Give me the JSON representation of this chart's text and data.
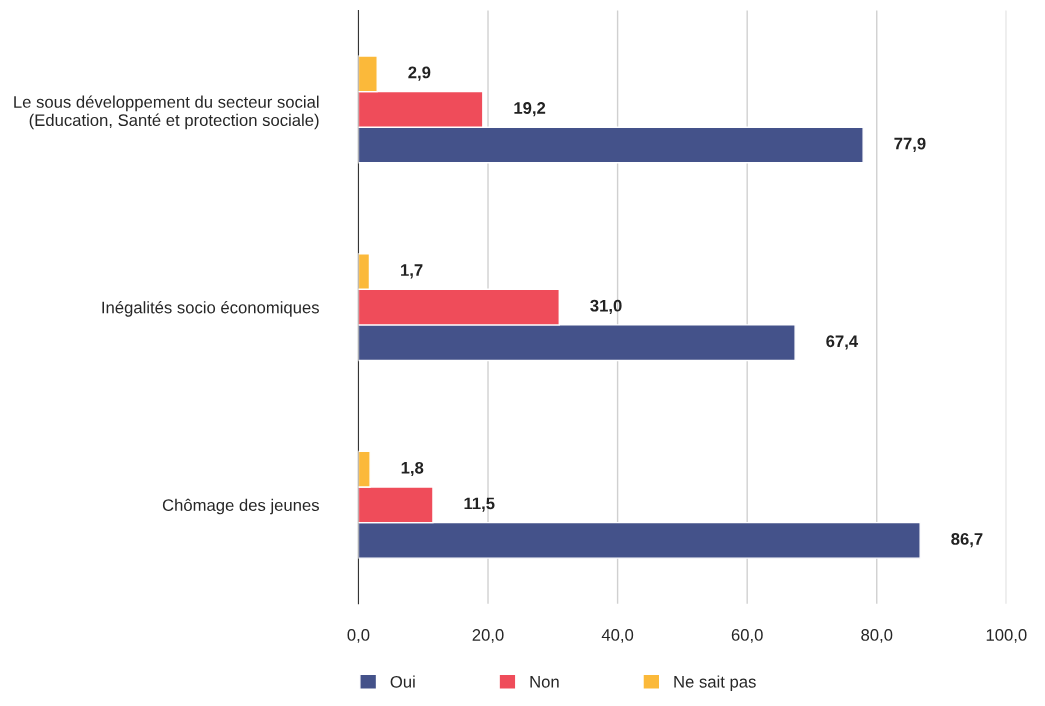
{
  "chart_data": {
    "type": "bar",
    "orientation": "horizontal",
    "categories": [
      "Le sous développement du secteur social\n(Education, Santé et protection sociale)",
      "Inégalités socio économiques",
      "Chômage des jeunes"
    ],
    "series": [
      {
        "name": "Oui",
        "color": "#44528a",
        "values": [
          77.9,
          67.4,
          86.7
        ],
        "value_labels": [
          "77,9",
          "67,4",
          "86,7"
        ]
      },
      {
        "name": "Non",
        "color": "#ef4c5a",
        "values": [
          19.2,
          31.0,
          11.5
        ],
        "value_labels": [
          "19,2",
          "31,0",
          "11,5"
        ]
      },
      {
        "name": "Ne sait pas",
        "color": "#fbb93a",
        "values": [
          2.9,
          1.7,
          1.8
        ],
        "value_labels": [
          "2,9",
          "1,7",
          "1,8"
        ]
      }
    ],
    "xlim": [
      0,
      100
    ],
    "xticks": [
      {
        "value": 0,
        "label": "0,0"
      },
      {
        "value": 20,
        "label": "20,0"
      },
      {
        "value": 40,
        "label": "40,0"
      },
      {
        "value": 60,
        "label": "60,0"
      },
      {
        "value": 80,
        "label": "80,0"
      },
      {
        "value": 100,
        "label": "100,0"
      }
    ],
    "grid": "x",
    "legend": "bottom"
  }
}
